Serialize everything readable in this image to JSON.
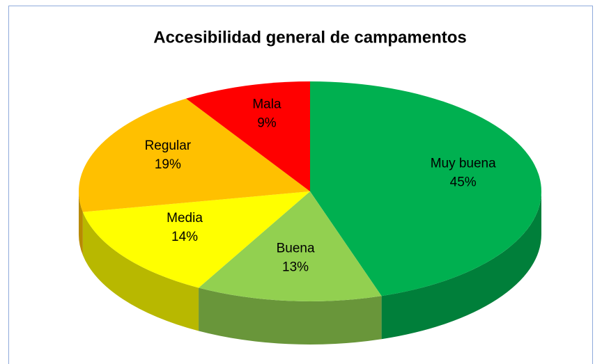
{
  "chart_data": {
    "type": "pie3d",
    "title": "Accesibilidad general de campamentos",
    "categories": [
      "Muy buena",
      "Buena",
      "Media",
      "Regular",
      "Mala"
    ],
    "values": [
      45,
      13,
      14,
      19,
      9
    ],
    "value_labels": [
      "45%",
      "13%",
      "14%",
      "19%",
      "9%"
    ],
    "colors": [
      "#00b050",
      "#92d050",
      "#ffff00",
      "#ffc000",
      "#ff0000"
    ]
  }
}
